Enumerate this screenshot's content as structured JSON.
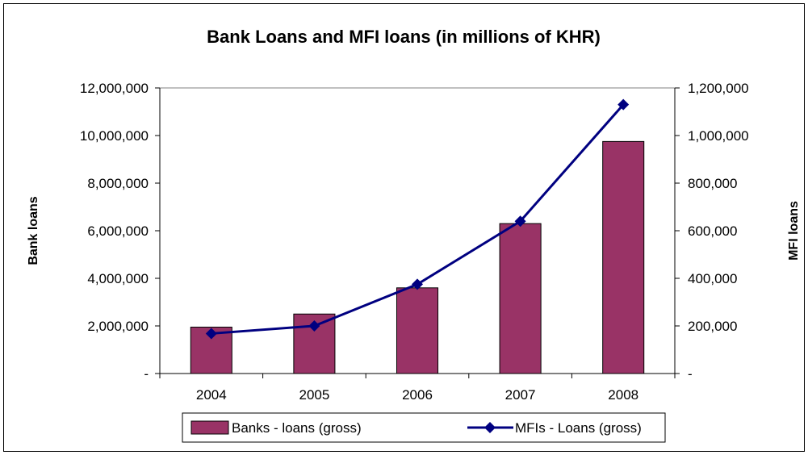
{
  "chart_data": {
    "type": "bar",
    "title": "Bank Loans and MFI loans (in millions of KHR)",
    "categories": [
      "2004",
      "2005",
      "2006",
      "2007",
      "2008"
    ],
    "ylabel": "Bank loans",
    "y2label": "MFI loans",
    "ylim": [
      0,
      12000000
    ],
    "y2lim": [
      0,
      1200000
    ],
    "yticks": [
      "-",
      "2,000,000",
      "4,000,000",
      "6,000,000",
      "8,000,000",
      "10,000,000",
      "12,000,000"
    ],
    "y2ticks": [
      "-",
      "200,000",
      "400,000",
      "600,000",
      "800,000",
      "1,000,000",
      "1,200,000"
    ],
    "grid": false,
    "legend_position": "bottom",
    "series": [
      {
        "name": "Banks - loans (gross)",
        "type": "bar",
        "axis": "left",
        "color": "#993366",
        "values": [
          1950000,
          2500000,
          3600000,
          6300000,
          9750000
        ]
      },
      {
        "name": "MFIs - Loans (gross)",
        "type": "line",
        "axis": "right",
        "color": "#000080",
        "marker": "diamond",
        "values": [
          168000,
          200000,
          375000,
          640000,
          1130000
        ]
      }
    ]
  }
}
